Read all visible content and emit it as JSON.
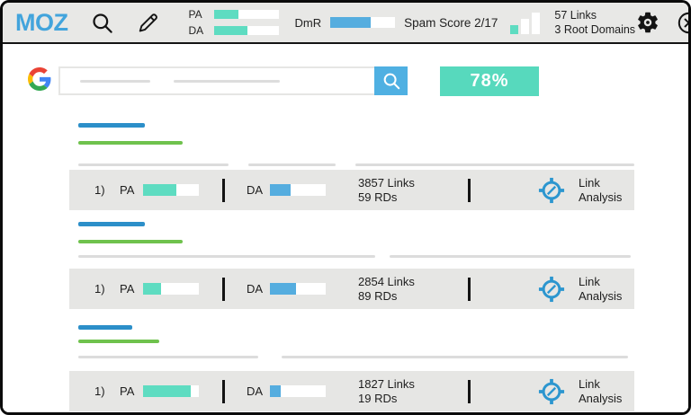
{
  "toolbar": {
    "logo_text": "MOZ",
    "metrics": {
      "pa_label": "PA",
      "pa_fill": "38%",
      "da_label": "DA",
      "da_fill": "52%",
      "dmr_label": "DmR",
      "dmr_fill": "62%"
    },
    "spam_score_label": "Spam Score 2/17",
    "links_summary": {
      "line1": "57 Links",
      "line2": "3 Root Domains"
    }
  },
  "search": {
    "badge": "78%"
  },
  "results": [
    {
      "num": "1)",
      "pa_label": "PA",
      "pa_fill": "60%",
      "da_label": "DA",
      "da_fill": "37%",
      "links": "3857 Links",
      "rds": "59 RDs",
      "action_label": "Link Analysis"
    },
    {
      "num": "1)",
      "pa_label": "PA",
      "pa_fill": "32%",
      "da_label": "DA",
      "da_fill": "47%",
      "links": "2854 Links",
      "rds": "89 RDs",
      "action_label": "Link Analysis"
    },
    {
      "num": "1)",
      "pa_label": "PA",
      "pa_fill": "85%",
      "da_label": "DA",
      "da_fill": "20%",
      "links": "1827 Links",
      "rds": "19 RDs",
      "action_label": "Link Analysis"
    }
  ],
  "colors": {
    "moz_blue": "#42a4dc",
    "teal": "#5edcc1",
    "bar_blue": "#55addf",
    "title_blue": "#2c8fc9",
    "url_green": "#6fc24d",
    "icon_blue": "#2c96cf",
    "row_bg": "#e6e6e4",
    "toolbar_bg": "#e8e8e6"
  }
}
